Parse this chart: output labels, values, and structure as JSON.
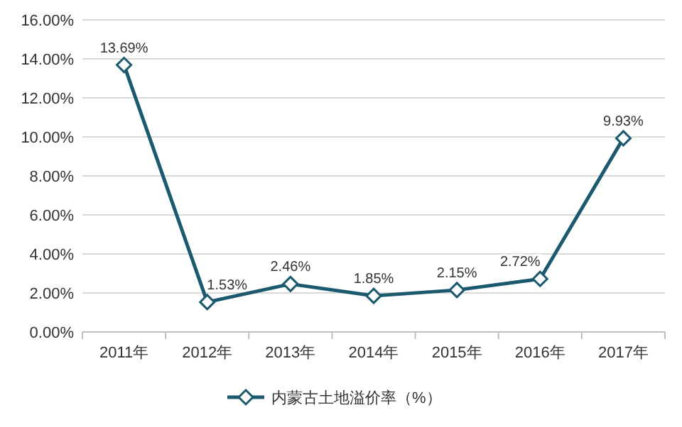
{
  "chart_data": {
    "type": "line",
    "categories": [
      "2011年",
      "2012年",
      "2013年",
      "2014年",
      "2015年",
      "2016年",
      "2017年"
    ],
    "series": [
      {
        "name": "内蒙古土地溢价率（%）",
        "color": "#1b5a6e",
        "values": [
          13.69,
          1.53,
          2.46,
          1.85,
          2.15,
          2.72,
          9.93
        ],
        "value_labels": [
          "13.69%",
          "1.53%",
          "2.46%",
          "1.85%",
          "2.15%",
          "2.72%",
          "9.93%"
        ]
      }
    ],
    "ylim": [
      0,
      16
    ],
    "yticks": [
      {
        "value": 0,
        "label": "0.00%"
      },
      {
        "value": 2,
        "label": "2.00%"
      },
      {
        "value": 4,
        "label": "4.00%"
      },
      {
        "value": 6,
        "label": "6.00%"
      },
      {
        "value": 8,
        "label": "8.00%"
      },
      {
        "value": 10,
        "label": "10.00%"
      },
      {
        "value": 12,
        "label": "12.00%"
      },
      {
        "value": 14,
        "label": "14.00%"
      },
      {
        "value": 16,
        "label": "16.00%"
      }
    ],
    "grid": "y",
    "legend": "bottom",
    "marker": "diamond"
  }
}
